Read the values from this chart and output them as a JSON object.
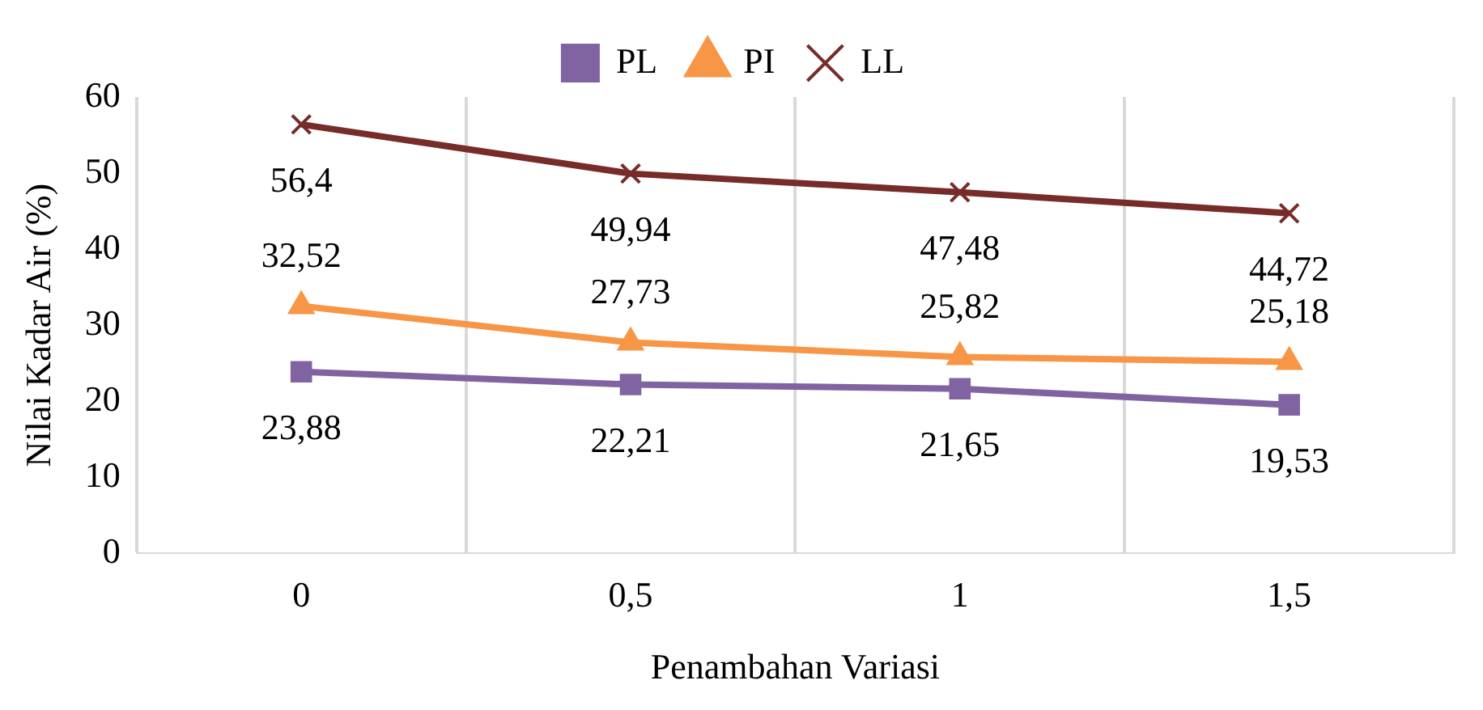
{
  "chart_data": {
    "type": "line",
    "xlabel": "Penambahan Variasi",
    "ylabel": "Nilai Kadar Air (%)",
    "categories": [
      "0",
      "0,5",
      "1",
      "1,5"
    ],
    "series": [
      {
        "name": "PL",
        "color": "#8064a2",
        "marker": "square",
        "values": [
          23.88,
          22.21,
          21.65,
          19.53
        ],
        "value_labels": [
          "23,88",
          "22,21",
          "21,65",
          "19,53"
        ]
      },
      {
        "name": "PI",
        "color": "#f79646",
        "marker": "triangle",
        "values": [
          32.52,
          27.73,
          25.82,
          25.18
        ],
        "value_labels": [
          "32,52",
          "27,73",
          "25,82",
          "25,18"
        ]
      },
      {
        "name": "LL",
        "color": "#772c2a",
        "marker": "cross",
        "values": [
          56.4,
          49.94,
          47.48,
          44.72
        ],
        "value_labels": [
          "56,4",
          "49,94",
          "47,48",
          "44,72"
        ]
      }
    ],
    "ylim": [
      0,
      60
    ],
    "yticks": [
      0,
      10,
      20,
      30,
      40,
      50,
      60
    ],
    "grid": "x",
    "legend": "top"
  }
}
